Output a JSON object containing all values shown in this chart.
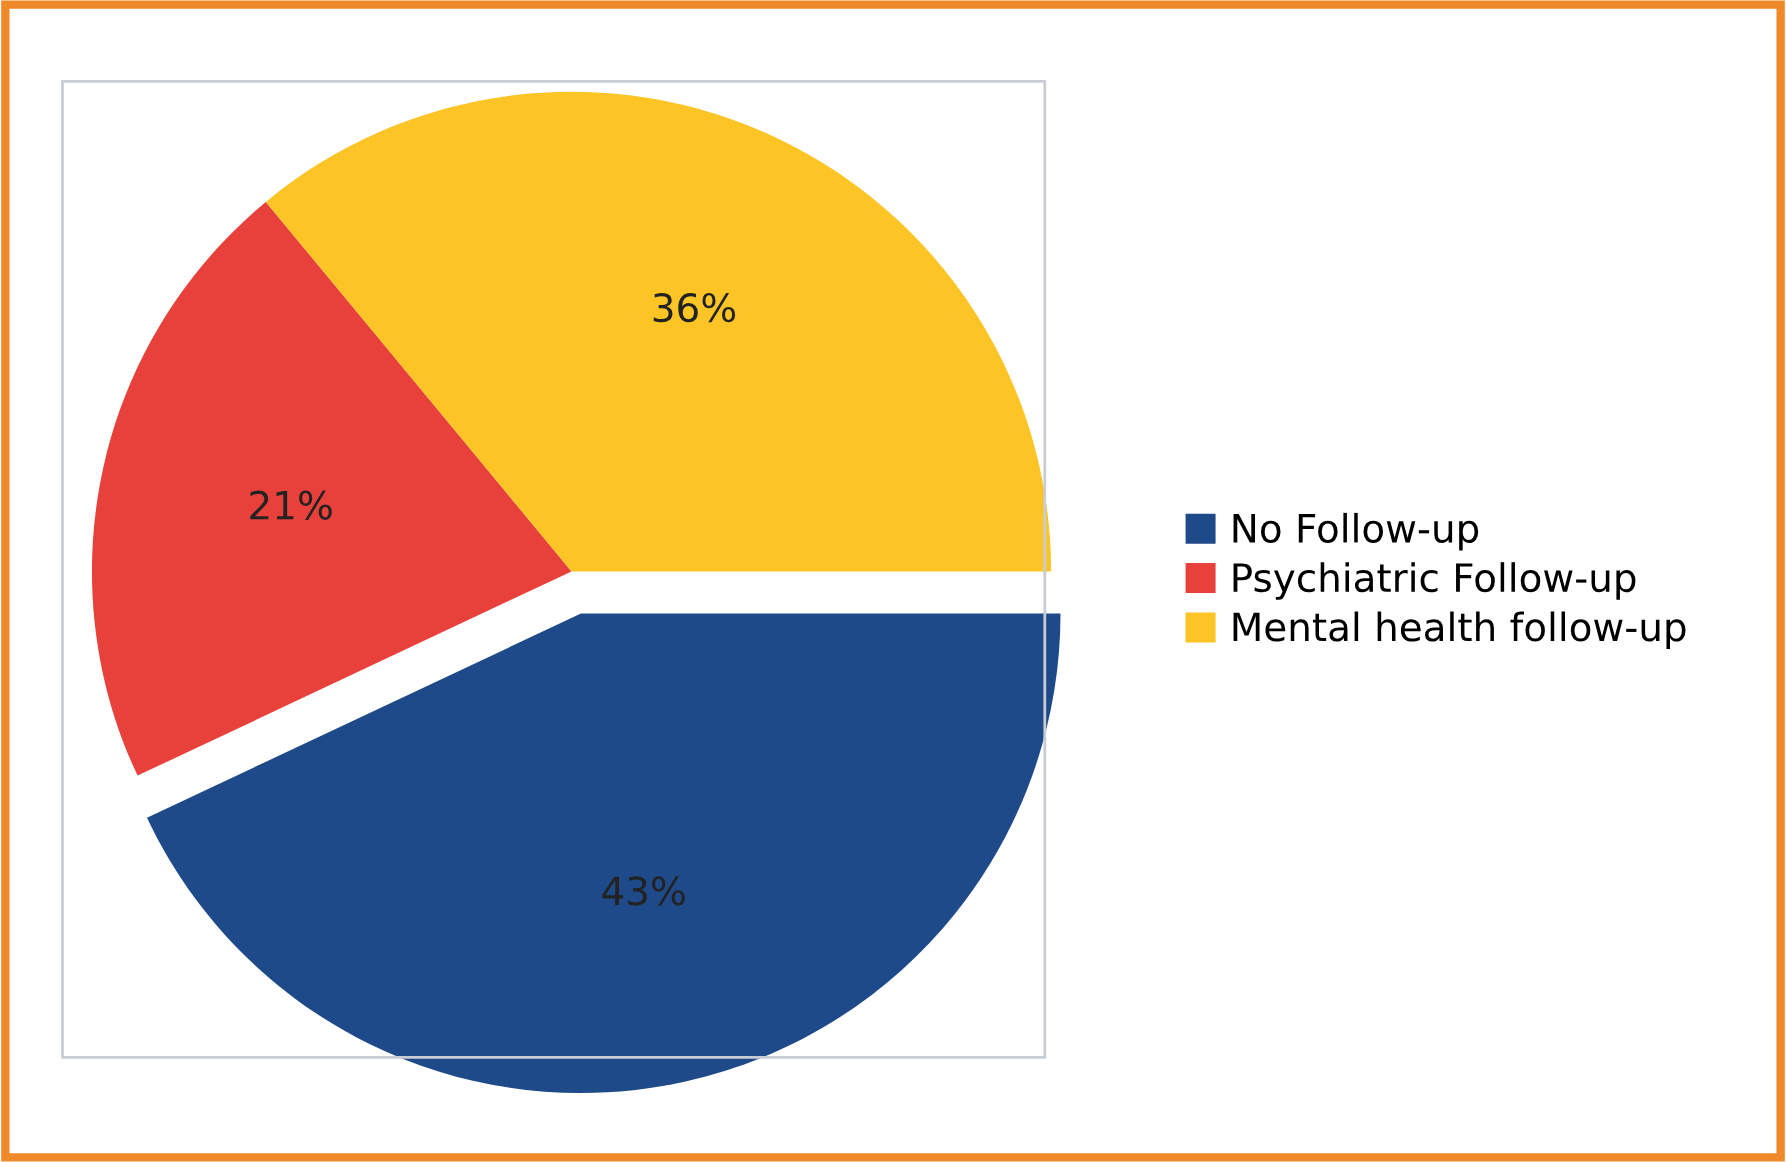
{
  "chart_data": {
    "type": "pie",
    "categories": [
      "No Follow-up",
      "Psychiatric Follow-up",
      "Mental health follow-up"
    ],
    "values": [
      43,
      21,
      36
    ],
    "colors": [
      "#1f4a8a",
      "#e8403a",
      "#fcc425"
    ],
    "value_labels": [
      "43%",
      "21%",
      "36%"
    ],
    "legend": "right"
  }
}
